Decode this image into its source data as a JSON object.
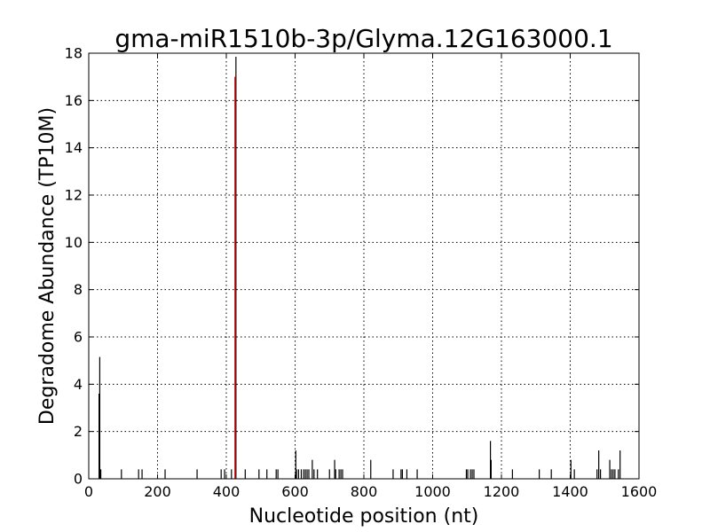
{
  "chart_data": {
    "type": "bar",
    "title": "gma-miR1510b-3p/Glyma.12G163000.1",
    "xlabel": "Nucleotide position (nt)",
    "ylabel": "Degradome Abundance (TP10M)",
    "xlim": [
      0,
      1600
    ],
    "ylim": [
      0,
      18
    ],
    "xticks": [
      "0",
      "200",
      "400",
      "600",
      "800",
      "1000",
      "1200",
      "1400",
      "1600"
    ],
    "yticks": [
      "0",
      "2",
      "4",
      "6",
      "8",
      "10",
      "12",
      "14",
      "16",
      "18"
    ],
    "grid": true,
    "series": [
      {
        "color": "#000000",
        "points": [
          [
            30,
            3.6
          ],
          [
            32,
            5.15
          ],
          [
            35,
            0.4
          ],
          [
            95,
            0.4
          ],
          [
            145,
            0.4
          ],
          [
            155,
            0.4
          ],
          [
            222,
            0.4
          ],
          [
            315,
            0.4
          ],
          [
            385,
            0.4
          ],
          [
            395,
            0.4
          ],
          [
            415,
            0.4
          ],
          [
            428,
            17.85
          ],
          [
            455,
            0.4
          ],
          [
            495,
            0.4
          ],
          [
            518,
            0.4
          ],
          [
            545,
            0.4
          ],
          [
            550,
            0.4
          ],
          [
            602,
            1.2
          ],
          [
            604,
            0.4
          ],
          [
            610,
            0.4
          ],
          [
            618,
            0.4
          ],
          [
            625,
            0.4
          ],
          [
            630,
            0.4
          ],
          [
            635,
            0.4
          ],
          [
            640,
            0.4
          ],
          [
            650,
            0.8
          ],
          [
            655,
            0.4
          ],
          [
            665,
            0.4
          ],
          [
            700,
            0.4
          ],
          [
            715,
            0.8
          ],
          [
            718,
            0.4
          ],
          [
            728,
            0.4
          ],
          [
            733,
            0.4
          ],
          [
            738,
            0.4
          ],
          [
            820,
            0.8
          ],
          [
            885,
            0.4
          ],
          [
            908,
            0.4
          ],
          [
            912,
            0.4
          ],
          [
            925,
            0.4
          ],
          [
            955,
            0.4
          ],
          [
            1098,
            0.4
          ],
          [
            1102,
            0.4
          ],
          [
            1110,
            0.4
          ],
          [
            1115,
            0.4
          ],
          [
            1120,
            0.4
          ],
          [
            1168,
            1.6
          ],
          [
            1170,
            0.8
          ],
          [
            1232,
            0.4
          ],
          [
            1310,
            0.4
          ],
          [
            1345,
            0.4
          ],
          [
            1402,
            0.8
          ],
          [
            1412,
            0.4
          ],
          [
            1478,
            0.4
          ],
          [
            1483,
            1.2
          ],
          [
            1488,
            0.4
          ],
          [
            1515,
            0.8
          ],
          [
            1520,
            0.4
          ],
          [
            1525,
            0.4
          ],
          [
            1530,
            0.4
          ],
          [
            1540,
            0.4
          ],
          [
            1545,
            1.2
          ]
        ]
      },
      {
        "color": "#ff0000",
        "points": [
          [
            425,
            17.0
          ]
        ]
      }
    ]
  }
}
